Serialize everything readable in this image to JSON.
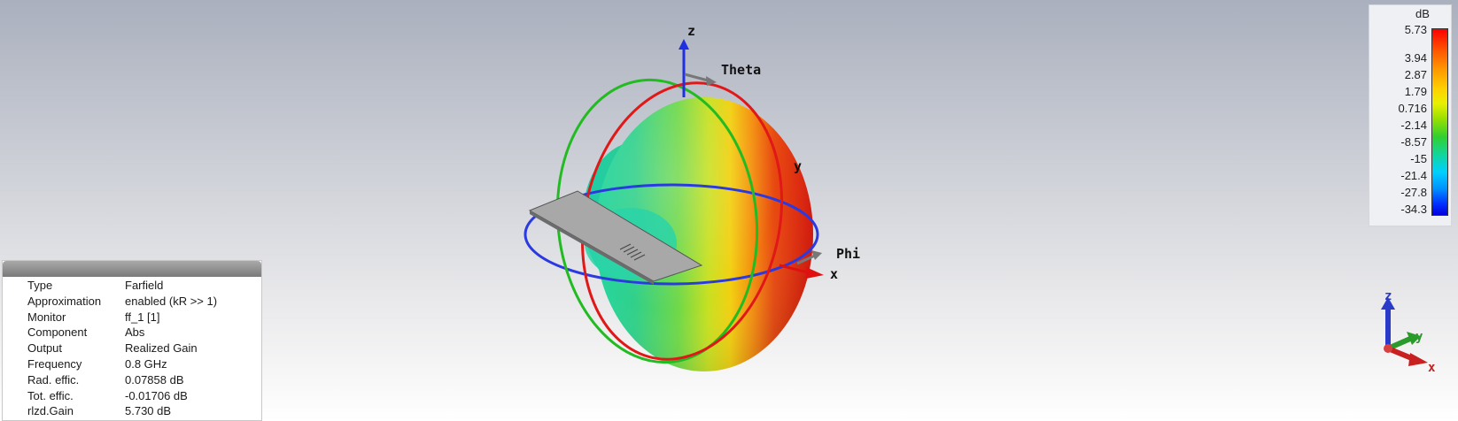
{
  "scene": {
    "axis_labels": {
      "z": "z",
      "theta": "Theta",
      "y": "y",
      "phi": "Phi",
      "x": "x"
    },
    "triad_labels": {
      "z": "z",
      "y": "y",
      "x": "x"
    },
    "colors": {
      "x_axis": "#e01010",
      "y_axis": "#1aa01a",
      "z_axis": "#2030e0",
      "theta_circle": "#e01818",
      "phi_circle": "#2a3ae0",
      "green_circle": "#22bb22"
    }
  },
  "legend": {
    "unit": "dB",
    "ticks": [
      "5.73",
      "3.94",
      "2.87",
      "1.79",
      "0.716",
      "-2.14",
      "-8.57",
      "-15",
      "-21.4",
      "-27.8",
      "-34.3"
    ]
  },
  "info": {
    "rows": [
      {
        "key": "Type",
        "value": "Farfield"
      },
      {
        "key": "Approximation",
        "value": "enabled (kR >> 1)"
      },
      {
        "key": "Monitor",
        "value": "ff_1 [1]"
      },
      {
        "key": "Component",
        "value": "Abs"
      },
      {
        "key": "Output",
        "value": "Realized Gain"
      },
      {
        "key": "Frequency",
        "value": "0.8 GHz"
      },
      {
        "key": "Rad. effic.",
        "value": "0.07858 dB"
      },
      {
        "key": "Tot. effic.",
        "value": "-0.01706 dB"
      },
      {
        "key": "rlzd.Gain",
        "value": "5.730 dB"
      }
    ]
  }
}
